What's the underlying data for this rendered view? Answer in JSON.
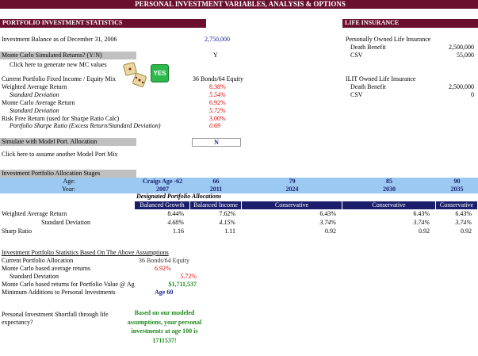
{
  "header": {
    "title": "PERSONAL INVESTMENT VARIABLES, ANALYSIS & OPTIONS"
  },
  "portfolio": {
    "title": "PORTFOLIO INVESTMENT STATISTICS",
    "balance": {
      "label": "Investment Balance as of December 31, 2006",
      "value": "2,750,000"
    },
    "mc_question": {
      "label": "Monte Carlo Simulated Returns? (Y/N)",
      "value": "Y"
    },
    "mc_click": "Click here to generate new MC values",
    "yes_button": "YES",
    "stats": [
      {
        "label": "Current Portfolio Fixed Income / Equity Mix",
        "value": "36 Bonds/64 Equity"
      },
      {
        "label": "Weighted Average Return",
        "value": "8.38%"
      },
      {
        "label": "Standard Deviation",
        "value": "5.54%"
      },
      {
        "label": "Monte Carlo Average Return",
        "value": "6.92%"
      },
      {
        "label": "Standard Deviation",
        "value": "5.72%"
      },
      {
        "label": "Risk Free Return (used for Sharpe Ratio Calc)",
        "value": "3.00%"
      },
      {
        "label": "Portfolio Sharpe Ratio (Excess Return/Standard Deviation)",
        "value": "0.69"
      }
    ],
    "simulate": {
      "label": "Simulate with Model Port. Allocation",
      "value": "N"
    },
    "simulate_click": "Click here to assume another Model Port Mix"
  },
  "life": {
    "title": "LIFE INSURANCE",
    "personal": {
      "title": "Personally Owned Life Insurance",
      "rows": [
        {
          "label": "Death Benefit",
          "value": "2,500,000"
        },
        {
          "label": "CSV",
          "value": "55,000"
        }
      ]
    },
    "ilit": {
      "title": "ILIT Owned Life Insurance",
      "rows": [
        {
          "label": "Death Benefit",
          "value": "2,500,000"
        },
        {
          "label": "CSV",
          "value": "0"
        }
      ]
    }
  },
  "allocation": {
    "title": "Investment Portfolio Allocation Stages",
    "age_label": "Age:",
    "year_label": "Year:",
    "stages": [
      {
        "age": "Craigs Age -62",
        "year": "2007",
        "allocation": "Balanced Growth"
      },
      {
        "age": "66",
        "year": "2011",
        "allocation": "Balanced Income"
      },
      {
        "age": "79",
        "year": "2024",
        "allocation": "Conservative"
      },
      {
        "age": "85",
        "year": "2030",
        "allocation": "Conservative"
      },
      {
        "age": "90",
        "year": "2035",
        "allocation": "Conservative"
      }
    ],
    "designated_label": "Designated Portfolio Allocations",
    "metrics": [
      {
        "label": "Weighted Average Return",
        "values": [
          "8.44%",
          "7.62%",
          "6.43%",
          "6.43%",
          "6.43%"
        ]
      },
      {
        "label": "Standard Deviation",
        "values": [
          "4.68%",
          "4.15%",
          "3.74%",
          "3.74%",
          "3.74%"
        ]
      },
      {
        "label": "Sharp Ratio",
        "values": [
          "1.16",
          "1.11",
          "0.92",
          "0.92",
          "0.92"
        ]
      }
    ]
  },
  "summary": {
    "title": "Investment Portfolio Statistics Based On The Above Assumptions",
    "rows": [
      {
        "label": "Current Portfolio Allocation",
        "value": "36 Bonds/64 Equity"
      },
      {
        "label": "Monte Carlo based average returns",
        "value": "6.92%"
      },
      {
        "label": "Standard Deviation",
        "value": "5.72%"
      },
      {
        "label": "Monte Carlo based returns for Portfolio Value @ Ag",
        "value": "$1,711,537"
      },
      {
        "label": "Minimum Additions to Personal Investments",
        "value": "Age 60"
      }
    ],
    "shortfall": {
      "label": "Personal Investment Shortfall through life expectancy?",
      "message": "Based on our modeled assumptions, your personal investments at age 100 is 1711537!"
    }
  }
}
